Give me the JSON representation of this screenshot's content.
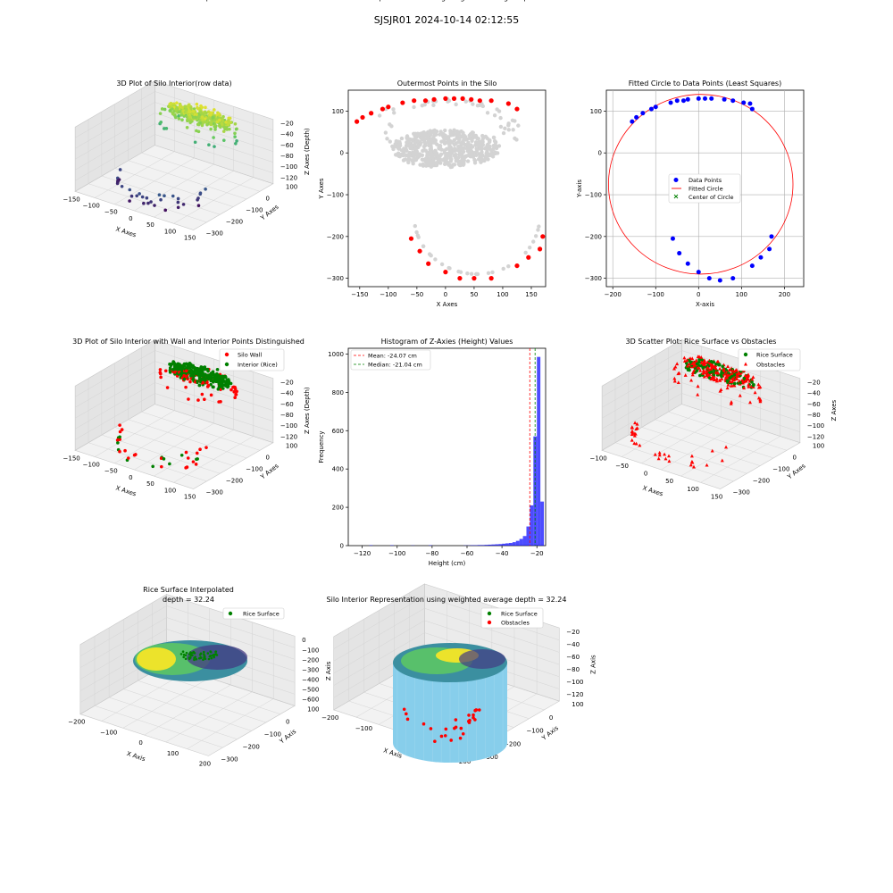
{
  "figure": {
    "title": "SJSJR01 2024-10-14 02:12:55"
  },
  "chart_data": [
    {
      "id": "p1",
      "type": "scatter",
      "projection": "3d",
      "title": "3D Plot of Silo Interior(row data)",
      "xlabel": "X Axes",
      "ylabel": "Y Axes",
      "zlabel": "Z Axes (Depth)",
      "xticks": [
        "−150",
        "−100",
        "−50",
        "0",
        "50",
        "100",
        "150"
      ],
      "yticks": [
        "100",
        "0",
        "−100",
        "−200",
        "−300"
      ],
      "zticks": [
        "−20",
        "−40",
        "−60",
        "−80",
        "−100",
        "−120"
      ],
      "xlim": [
        -170,
        170
      ],
      "ylim": [
        -320,
        140
      ],
      "zlim": [
        -130,
        -15
      ],
      "colormap": "viridis"
    },
    {
      "id": "p2",
      "type": "scatter",
      "title": "Outermost Points in the Silo",
      "xlabel": "X Axes",
      "ylabel": "Y Axes",
      "xticks": [
        -150,
        -100,
        -50,
        0,
        50,
        100,
        150
      ],
      "yticks": [
        100,
        0,
        -100,
        -200,
        -300
      ],
      "xlim": [
        -170,
        175
      ],
      "ylim": [
        -320,
        150
      ],
      "series": [
        {
          "role": "all",
          "color": "#d3d3d3"
        },
        {
          "role": "outermost",
          "color": "#ff0000",
          "x": [
            -155,
            -145,
            -130,
            -110,
            -100,
            -75,
            -55,
            -35,
            -20,
            0,
            15,
            30,
            45,
            60,
            80,
            110,
            125,
            -60,
            -45,
            -30,
            0,
            25,
            50,
            80,
            125,
            145,
            165,
            170
          ],
          "y": [
            75,
            85,
            95,
            105,
            110,
            120,
            125,
            125,
            128,
            130,
            130,
            130,
            128,
            125,
            125,
            118,
            105,
            -205,
            -235,
            -265,
            -285,
            -300,
            -300,
            -300,
            -270,
            -250,
            -230,
            -200
          ]
        }
      ]
    },
    {
      "id": "p3",
      "type": "scatter",
      "title": "Fitted Circle to Data Points (Least Squares)",
      "xlabel": "X-axis",
      "ylabel": "Y-axis",
      "xticks": [
        -200,
        -100,
        0,
        100,
        200
      ],
      "yticks": [
        100,
        0,
        -100,
        -200,
        -300
      ],
      "xlim": [
        -215,
        245
      ],
      "ylim": [
        -320,
        150
      ],
      "grid": true,
      "legend": {
        "position": "center",
        "entries": [
          "Data Points",
          "Fitted Circle",
          "Center of Circle"
        ]
      },
      "circle": {
        "cx": 5,
        "cy": -75,
        "r": 215
      },
      "center_marker": {
        "x": 5,
        "y": -75
      },
      "points": {
        "x": [
          -155,
          -145,
          -130,
          -110,
          -100,
          -65,
          -50,
          -35,
          -25,
          0,
          15,
          30,
          60,
          80,
          105,
          120,
          125,
          -60,
          -45,
          -25,
          0,
          25,
          50,
          80,
          125,
          145,
          165,
          170
        ],
        "y": [
          75,
          85,
          95,
          105,
          110,
          120,
          125,
          125,
          128,
          130,
          130,
          130,
          128,
          125,
          120,
          118,
          105,
          -205,
          -240,
          -265,
          -285,
          -300,
          -305,
          -300,
          -270,
          -250,
          -230,
          -200
        ]
      }
    },
    {
      "id": "p4",
      "type": "scatter",
      "projection": "3d",
      "title": "3D Plot of Silo Interior with Wall and Interior Points Distinguished",
      "xlabel": "X Axes",
      "ylabel": "Y Axes",
      "zlabel": "Z Axes (Depth)",
      "xticks": [
        "−150",
        "−100",
        "−50",
        "0",
        "50",
        "100",
        "150"
      ],
      "yticks": [
        "100",
        "0",
        "−100",
        "−200",
        "−300"
      ],
      "zticks": [
        "−20",
        "−40",
        "−60",
        "−80",
        "−100",
        "−120"
      ],
      "xlim": [
        -170,
        170
      ],
      "ylim": [
        -320,
        140
      ],
      "zlim": [
        -130,
        -15
      ],
      "legend": {
        "position": "top-right",
        "entries": [
          "Silo Wall",
          "Interior (Rice)"
        ]
      }
    },
    {
      "id": "p5",
      "type": "bar",
      "title": "Histogram of Z-Axies (Height) Values",
      "xlabel": "Height (cm)",
      "ylabel": "Frequency",
      "xticks": [
        -120,
        -100,
        -80,
        -60,
        -40,
        -20
      ],
      "yticks": [
        0,
        200,
        400,
        600,
        800,
        1000
      ],
      "xlim": [
        -128,
        -15
      ],
      "ylim": [
        0,
        1030
      ],
      "bin_width": 2,
      "bins": [
        [
          -116,
          2
        ],
        [
          -104,
          2
        ],
        [
          -92,
          1
        ],
        [
          -82,
          2
        ],
        [
          -62,
          1
        ],
        [
          -60,
          1
        ],
        [
          -58,
          2
        ],
        [
          -56,
          2
        ],
        [
          -54,
          3
        ],
        [
          -52,
          3
        ],
        [
          -50,
          4
        ],
        [
          -48,
          5
        ],
        [
          -46,
          6
        ],
        [
          -44,
          7
        ],
        [
          -42,
          8
        ],
        [
          -40,
          10
        ],
        [
          -38,
          12
        ],
        [
          -36,
          14
        ],
        [
          -34,
          18
        ],
        [
          -32,
          25
        ],
        [
          -30,
          35
        ],
        [
          -28,
          50
        ],
        [
          -26,
          100
        ],
        [
          -24,
          210
        ],
        [
          -22,
          570
        ],
        [
          -20,
          985
        ],
        [
          -18,
          230
        ]
      ],
      "mean": -24.07,
      "median": -21.04,
      "legend": {
        "position": "top-left",
        "entries": [
          "Mean: -24.07 cm",
          "Median: -21.04 cm"
        ]
      }
    },
    {
      "id": "p6",
      "type": "scatter",
      "projection": "3d",
      "title": "3D Scatter Plot: Rice Surface vs Obstacles",
      "zlabel": "Z Axes",
      "xlabel": "X Axes",
      "ylabel": "Y Axes",
      "xticks": [
        "−100",
        "−50",
        "0",
        "50",
        "100",
        "150"
      ],
      "yticks": [
        "100",
        "0",
        "−100",
        "−200",
        "−300"
      ],
      "zticks": [
        "−20",
        "−40",
        "−60",
        "−80",
        "−100",
        "−120"
      ],
      "xlim": [
        -130,
        170
      ],
      "ylim": [
        -320,
        140
      ],
      "zlim": [
        -130,
        -15
      ],
      "legend": {
        "position": "top-right",
        "entries": [
          "Rice Surface",
          "Obstacles"
        ]
      }
    },
    {
      "id": "p7",
      "type": "scatter",
      "projection": "3d",
      "title": "Rice Surface Interpolated",
      "subtitle": "depth = 32.24",
      "xlabel": "X Axis",
      "ylabel": "Y Axis",
      "zlabel": "Z Axis",
      "xticks": [
        "−200",
        "−100",
        "0",
        "100",
        "200"
      ],
      "yticks": [
        "100",
        "0",
        "−100",
        "−200",
        "−300"
      ],
      "zticks": [
        "0",
        "−100",
        "−200",
        "−300",
        "−400",
        "−500",
        "−600"
      ],
      "xlim": [
        -220,
        220
      ],
      "ylim": [
        -320,
        140
      ],
      "zlim": [
        -600,
        0
      ],
      "legend": {
        "position": "top-right",
        "entries": [
          "Rice Surface"
        ]
      }
    },
    {
      "id": "p8",
      "type": "scatter",
      "projection": "3d",
      "title": "Silo Interior Representation using weighted average depth = 32.24",
      "xlabel": "X Axis",
      "ylabel": "Y Axis",
      "zlabel": "Z Axis",
      "xticks": [
        "−200",
        "−100",
        "0",
        "100",
        "200"
      ],
      "yticks": [
        "100",
        "0",
        "−100",
        "−200",
        "−300"
      ],
      "zticks": [
        "−20",
        "−40",
        "−60",
        "−80",
        "−100",
        "−120"
      ],
      "xlim": [
        -220,
        220
      ],
      "ylim": [
        -320,
        140
      ],
      "zlim": [
        -130,
        -15
      ],
      "legend": {
        "position": "top-center",
        "entries": [
          "Rice Surface",
          "Obstacles"
        ]
      }
    }
  ]
}
